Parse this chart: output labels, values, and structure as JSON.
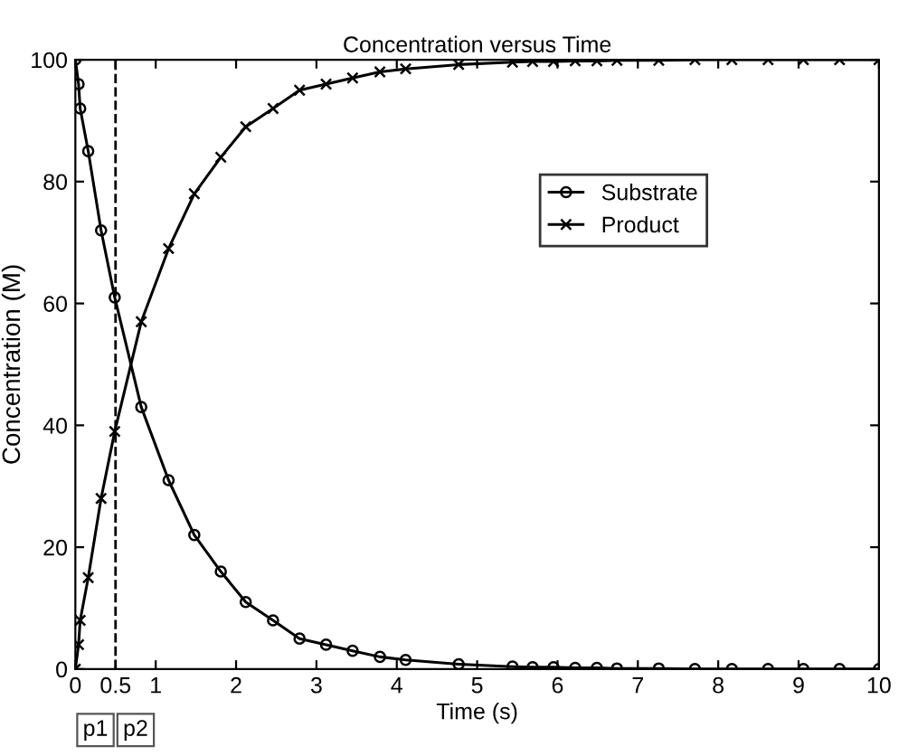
{
  "chart_data": {
    "type": "line",
    "title": "Concentration versus Time",
    "xlabel": "Time (s)",
    "ylabel": "Concentration (M)",
    "x": [
      0,
      0.04,
      0.06,
      0.16,
      0.32,
      0.49,
      0.82,
      1.16,
      1.48,
      1.81,
      2.12,
      2.46,
      2.79,
      3.12,
      3.45,
      3.79,
      4.11,
      4.77,
      5.44,
      5.69,
      5.95,
      6.22,
      6.49,
      6.74,
      7.26,
      7.71,
      8.17,
      8.62,
      9.06,
      9.51,
      10
    ],
    "series": [
      {
        "name": "Substrate",
        "color": "#000000",
        "marker": "circle",
        "values": [
          100,
          96,
          92,
          85,
          72,
          61,
          43,
          31,
          22,
          16,
          11,
          8,
          5,
          4,
          3,
          2,
          1.5,
          0.8,
          0.4,
          0.3,
          0.3,
          0.2,
          0.2,
          0.1,
          0.1,
          0,
          0,
          0,
          0,
          0,
          0
        ]
      },
      {
        "name": "Product",
        "color": "#000000",
        "marker": "cross",
        "values": [
          0,
          4,
          8,
          15,
          28,
          39,
          57,
          69,
          78,
          84,
          89,
          92,
          95,
          96,
          97,
          98,
          98.5,
          99.2,
          99.6,
          99.7,
          99.7,
          99.8,
          99.8,
          99.9,
          99.9,
          100,
          100,
          100,
          100,
          100,
          100
        ]
      }
    ],
    "xlim": [
      0,
      10
    ],
    "xticks": [
      0,
      0.5,
      1,
      2,
      3,
      4,
      5,
      6,
      7,
      8,
      9,
      10
    ],
    "ylim": [
      0,
      100
    ],
    "yticks": [
      0,
      20,
      40,
      60,
      80,
      100
    ],
    "ref_lines": [
      {
        "axis": "x",
        "value": 0.5,
        "line_style": "dashed",
        "color": "#000000"
      }
    ],
    "annotations": [
      "p1",
      "p2"
    ],
    "legend": "top right",
    "grid": false,
    "line_style": "solid"
  }
}
